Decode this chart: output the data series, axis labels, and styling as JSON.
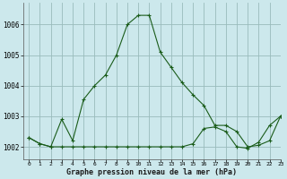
{
  "title": "Graphe pression niveau de la mer (hPa)",
  "background_color": "#cce8ec",
  "grid_color": "#99bbbb",
  "line_color": "#1a5c1a",
  "xlim": [
    -0.5,
    23
  ],
  "ylim": [
    1001.6,
    1006.7
  ],
  "yticks": [
    1002,
    1003,
    1004,
    1005,
    1006
  ],
  "xticks": [
    0,
    1,
    2,
    3,
    4,
    5,
    6,
    7,
    8,
    9,
    10,
    11,
    12,
    13,
    14,
    15,
    16,
    17,
    18,
    19,
    20,
    21,
    22,
    23
  ],
  "series1_x": [
    0,
    1,
    2,
    3,
    4,
    5,
    6,
    7,
    8,
    9,
    10,
    11,
    12,
    13,
    14,
    15,
    16,
    17,
    18,
    19,
    20,
    21,
    22,
    23
  ],
  "series1_y": [
    1002.3,
    1002.1,
    1002.0,
    1002.9,
    1002.2,
    1003.55,
    1004.0,
    1004.35,
    1005.0,
    1006.0,
    1006.3,
    1006.3,
    1005.1,
    1004.6,
    1004.1,
    1003.7,
    1003.35,
    1002.7,
    1002.7,
    1002.5,
    1002.0,
    1002.05,
    1002.2,
    1003.0
  ],
  "series2_x": [
    0,
    1,
    2,
    3,
    4,
    5,
    6,
    7,
    8,
    9,
    10,
    11,
    12,
    13,
    14,
    15,
    16,
    17,
    18,
    19,
    20,
    21,
    22,
    23
  ],
  "series2_y": [
    1002.3,
    1002.1,
    1002.0,
    1002.0,
    1002.0,
    1002.0,
    1002.0,
    1002.0,
    1002.0,
    1002.0,
    1002.0,
    1002.0,
    1002.0,
    1002.0,
    1002.0,
    1002.1,
    1002.6,
    1002.65,
    1002.5,
    1002.0,
    1001.95,
    1002.15,
    1002.7,
    1003.0
  ]
}
